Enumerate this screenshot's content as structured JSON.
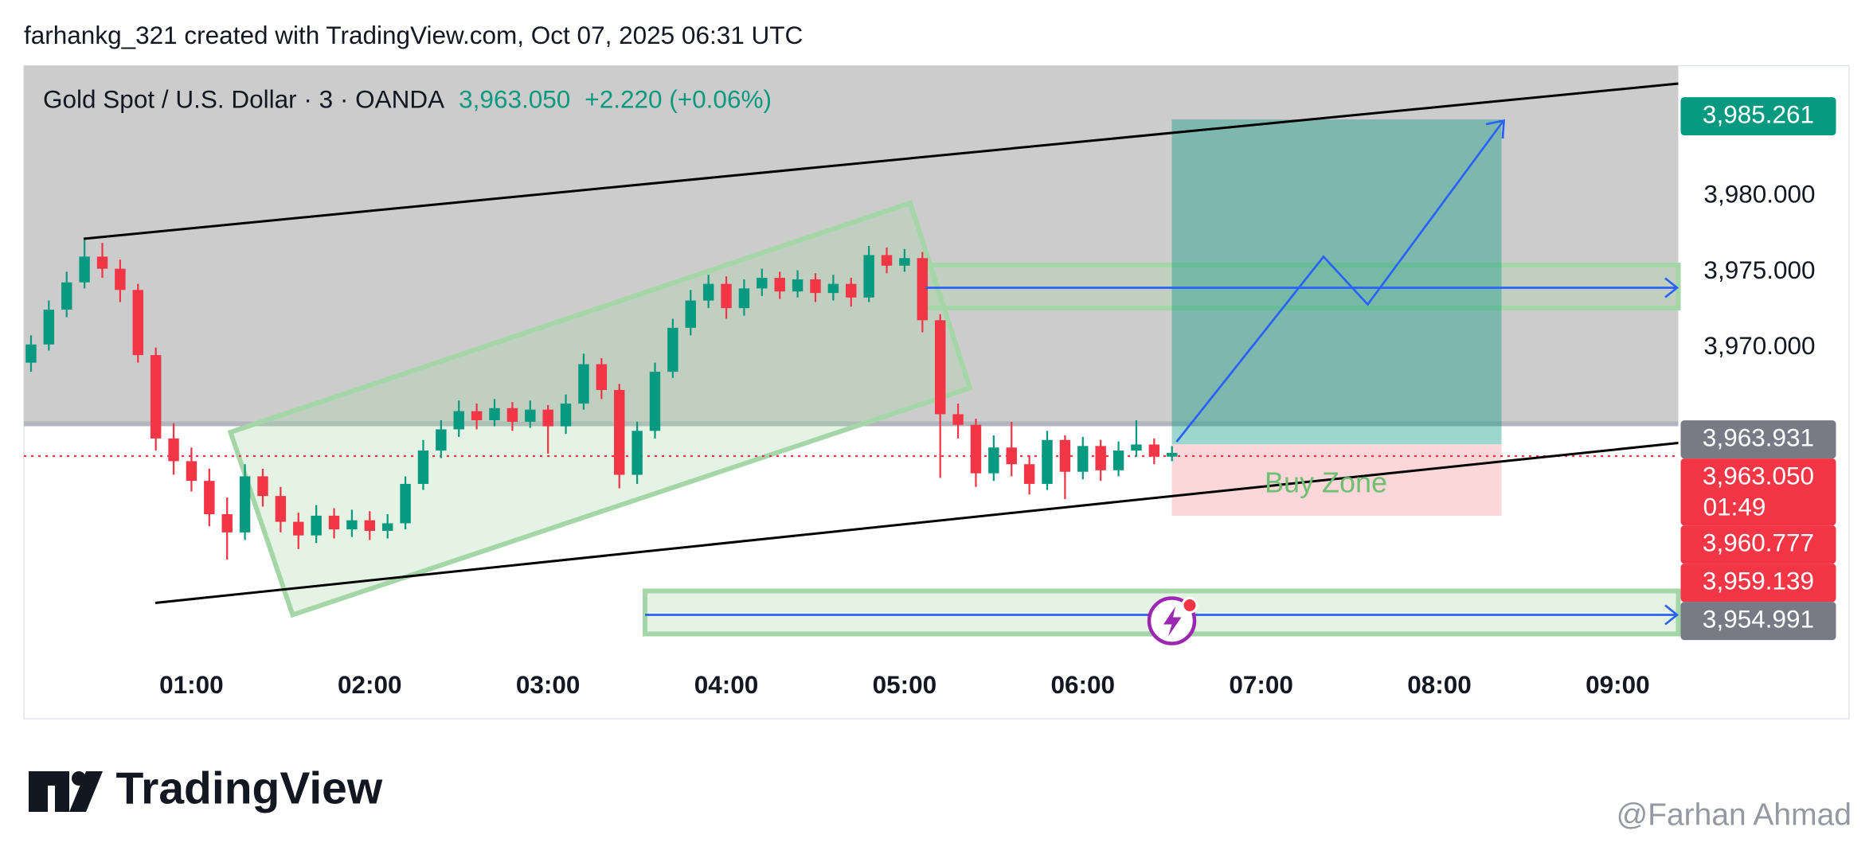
{
  "header": "farhankg_321 created with TradingView.com, Oct 07, 2025 06:31 UTC",
  "legend": {
    "symbol": "Gold Spot / U.S. Dollar · 3 · OANDA",
    "price": "3,963.050",
    "change": "+2.220 (+0.06%)"
  },
  "chart_data": {
    "type": "candlestick",
    "up_color": "#089981",
    "down_color": "#f23645",
    "x": [
      0.1,
      0.2,
      0.3,
      0.4,
      0.5,
      0.6,
      0.7,
      0.8,
      0.9,
      1.0,
      1.1,
      1.2,
      1.3,
      1.4,
      1.5,
      1.6,
      1.7,
      1.8,
      1.9,
      2.0,
      2.1,
      2.2,
      2.3,
      2.4,
      2.5,
      2.6,
      2.7,
      2.8,
      2.9,
      3.0,
      3.1,
      3.2,
      3.3,
      3.4,
      3.5,
      3.6,
      3.7,
      3.8,
      3.9,
      4.0,
      4.1,
      4.2,
      4.3,
      4.4,
      4.5,
      4.6,
      4.7,
      4.8,
      4.9,
      5.0,
      5.1,
      5.2,
      5.3,
      5.4,
      5.5,
      5.6,
      5.7,
      5.8,
      5.9,
      6.0,
      6.1,
      6.2,
      6.3,
      6.4,
      6.5
    ],
    "open": [
      3969.0,
      3970.2,
      3972.5,
      3974.3,
      3976.0,
      3975.2,
      3973.8,
      3969.5,
      3964.0,
      3962.5,
      3961.2,
      3959.0,
      3957.8,
      3961.5,
      3960.2,
      3958.5,
      3957.6,
      3958.9,
      3958.0,
      3958.6,
      3957.9,
      3958.4,
      3961.0,
      3963.2,
      3964.6,
      3965.8,
      3965.2,
      3966.0,
      3965.1,
      3965.9,
      3964.8,
      3966.3,
      3968.9,
      3967.2,
      3961.6,
      3964.5,
      3968.4,
      3971.3,
      3973.1,
      3974.2,
      3972.6,
      3973.9,
      3974.6,
      3973.7,
      3974.5,
      3973.6,
      3974.2,
      3973.3,
      3976.1,
      3975.4,
      3975.9,
      3971.8,
      3965.6,
      3964.9,
      3961.7,
      3963.4,
      3962.3,
      3961.0,
      3963.9,
      3961.8,
      3963.5,
      3961.9,
      3963.2,
      3963.6,
      3962.8
    ],
    "high": [
      3970.8,
      3973.1,
      3975.0,
      3977.1,
      3976.9,
      3975.8,
      3974.2,
      3970.0,
      3965.0,
      3963.4,
      3962.0,
      3960.1,
      3962.3,
      3962.0,
      3960.8,
      3959.1,
      3959.6,
      3959.4,
      3959.3,
      3959.2,
      3959.0,
      3961.5,
      3963.9,
      3965.2,
      3966.5,
      3966.3,
      3966.6,
      3966.4,
      3966.5,
      3966.2,
      3966.9,
      3969.6,
      3969.3,
      3967.6,
      3965.1,
      3969.0,
      3971.9,
      3973.8,
      3974.8,
      3974.7,
      3974.5,
      3975.2,
      3975.0,
      3975.1,
      3974.9,
      3974.8,
      3974.6,
      3976.7,
      3976.6,
      3976.5,
      3976.3,
      3972.2,
      3966.3,
      3965.3,
      3964.2,
      3965.1,
      3962.9,
      3964.5,
      3964.2,
      3964.1,
      3963.9,
      3963.8,
      3965.2,
      3964.0,
      3963.5
    ],
    "low": [
      3968.4,
      3969.8,
      3972.0,
      3973.9,
      3974.6,
      3973.0,
      3969.0,
      3963.2,
      3961.6,
      3960.5,
      3958.2,
      3956.0,
      3957.3,
      3959.5,
      3957.8,
      3956.7,
      3957.1,
      3957.4,
      3957.5,
      3957.3,
      3957.4,
      3958.0,
      3960.6,
      3962.7,
      3964.1,
      3964.6,
      3964.8,
      3964.5,
      3964.7,
      3963.0,
      3964.3,
      3965.9,
      3966.6,
      3960.7,
      3961.0,
      3964.0,
      3968.0,
      3970.8,
      3972.6,
      3971.9,
      3972.1,
      3973.4,
      3973.2,
      3973.3,
      3973.0,
      3973.1,
      3972.7,
      3973.0,
      3974.9,
      3975.0,
      3971.0,
      3961.4,
      3964.0,
      3960.8,
      3961.2,
      3961.5,
      3960.3,
      3960.6,
      3960.0,
      3961.3,
      3961.2,
      3961.5,
      3962.8,
      3962.3,
      3962.5
    ],
    "close": [
      3970.2,
      3972.5,
      3974.3,
      3976.0,
      3975.2,
      3973.8,
      3969.5,
      3964.0,
      3962.5,
      3961.2,
      3959.0,
      3957.8,
      3961.5,
      3960.2,
      3958.5,
      3957.6,
      3958.9,
      3958.0,
      3958.6,
      3957.9,
      3958.4,
      3961.0,
      3963.2,
      3964.6,
      3965.8,
      3965.2,
      3966.0,
      3965.1,
      3965.9,
      3964.8,
      3966.3,
      3968.9,
      3967.2,
      3961.6,
      3964.5,
      3968.4,
      3971.3,
      3973.1,
      3974.2,
      3972.6,
      3973.9,
      3974.6,
      3973.7,
      3974.5,
      3973.6,
      3974.2,
      3973.3,
      3976.1,
      3975.4,
      3975.9,
      3971.8,
      3965.6,
      3964.9,
      3961.7,
      3963.4,
      3962.3,
      3961.0,
      3963.9,
      3961.8,
      3963.5,
      3961.9,
      3963.2,
      3963.6,
      3962.8,
      3963.05
    ],
    "xlim": [
      0.06,
      9.34
    ],
    "xticks": [
      {
        "value": 1,
        "label": "01:00"
      },
      {
        "value": 2,
        "label": "02:00"
      },
      {
        "value": 3,
        "label": "03:00"
      },
      {
        "value": 4,
        "label": "04:00"
      },
      {
        "value": 5,
        "label": "05:00"
      },
      {
        "value": 6,
        "label": "06:00"
      },
      {
        "value": 7,
        "label": "07:00"
      },
      {
        "value": 8,
        "label": "08:00"
      },
      {
        "value": 9,
        "label": "09:00"
      }
    ],
    "ylim": [
      3949.6,
      3988.6
    ],
    "yticks": [
      {
        "value": 3980,
        "label": "3,980.000"
      },
      {
        "value": 3975,
        "label": "3,975.000"
      },
      {
        "value": 3970,
        "label": "3,970.000"
      }
    ],
    "grid": false,
    "price_labels": [
      {
        "value": 3985.261,
        "label": "3,985.261",
        "color": "#089981"
      },
      {
        "value": 3963.931,
        "label": "3,963.931",
        "color": "#787b86"
      },
      {
        "value": 3963.05,
        "label": "3,963.050",
        "color": "#f23645"
      },
      {
        "value": 3960.777,
        "label": "3,960.777",
        "color": "#f23645"
      },
      {
        "value": 3959.139,
        "label": "3,959.139",
        "color": "#f23645"
      },
      {
        "value": 3954.991,
        "label": "3,954.991",
        "color": "#787b86"
      }
    ],
    "countdown": "01:49",
    "annotation": "Buy Zone"
  },
  "branding": {
    "logo": "TradingView",
    "watermark": "@Farhan Ahmad"
  }
}
